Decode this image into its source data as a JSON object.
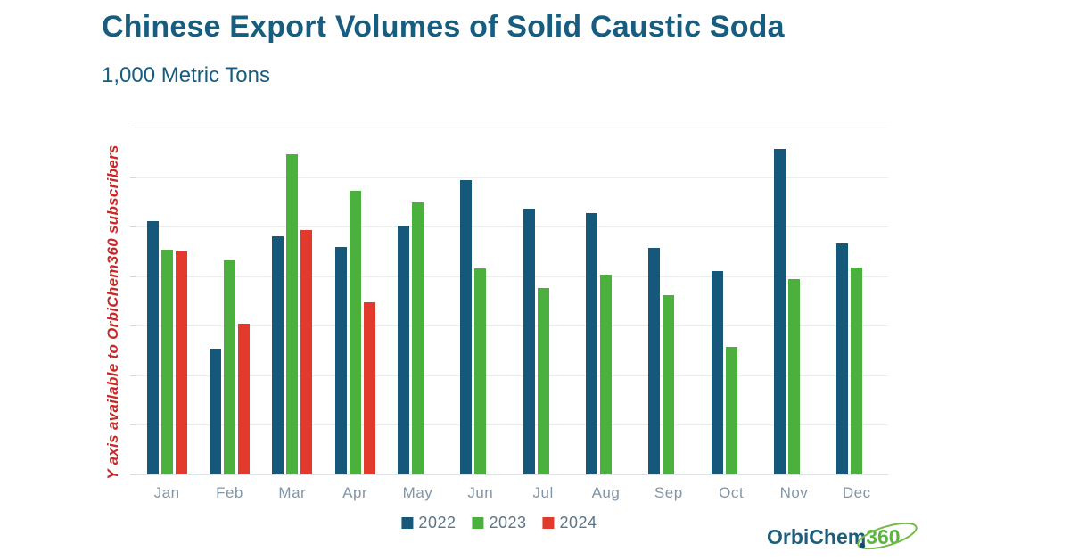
{
  "header": {
    "title": "Chinese Export Volumes of Solid Caustic Soda",
    "subtitle": "1,000 Metric Tons"
  },
  "annotation": {
    "text": "Y axis available to OrbiChem360 subscribers",
    "color": "#cc2626"
  },
  "chart_data": {
    "type": "bar",
    "title": "Chinese Export Volumes of Solid Caustic Soda",
    "units_label": "1,000 Metric Tons",
    "categories": [
      "Jan",
      "Feb",
      "Mar",
      "Apr",
      "May",
      "Jun",
      "Jul",
      "Aug",
      "Sep",
      "Oct",
      "Nov",
      "Dec"
    ],
    "series": [
      {
        "name": "2022",
        "color": "#16587a",
        "heights_pct_of_plot": [
          73.0,
          36.2,
          68.6,
          65.6,
          71.7,
          84.8,
          76.6,
          75.3,
          65.3,
          58.6,
          93.8,
          66.6
        ]
      },
      {
        "name": "2023",
        "color": "#4cb03e",
        "heights_pct_of_plot": [
          64.8,
          61.7,
          92.3,
          81.7,
          78.4,
          59.4,
          53.7,
          57.6,
          51.7,
          36.8,
          56.3,
          59.6
        ]
      },
      {
        "name": "2024",
        "color": "#e23b2e",
        "heights_pct_of_plot": [
          64.3,
          43.4,
          70.4,
          49.6,
          null,
          null,
          null,
          null,
          null,
          null,
          null,
          null
        ]
      }
    ],
    "y_axis": {
      "labels_hidden": true,
      "note": "Y axis available to OrbiChem360 subscribers",
      "gridline_count": 8,
      "gridline_intervals": 7
    },
    "xlabel": "",
    "ylabel": "",
    "grid": true,
    "legend_position": "bottom-center"
  },
  "legend": {
    "items": [
      {
        "label": "2022",
        "color": "#16587a"
      },
      {
        "label": "2023",
        "color": "#4cb03e"
      },
      {
        "label": "2024",
        "color": "#e23b2e"
      }
    ]
  },
  "logo": {
    "part1": "OrbiChem",
    "part2": "360",
    "text_color": "#1d5d7e",
    "accent_color": "#5cb540"
  },
  "colors": {
    "title": "#175d80",
    "gridline": "#ececec",
    "baseline": "#dde2e6",
    "x_label": "#8296a7",
    "legend_label": "#5e7486",
    "background": "#ffffff"
  }
}
